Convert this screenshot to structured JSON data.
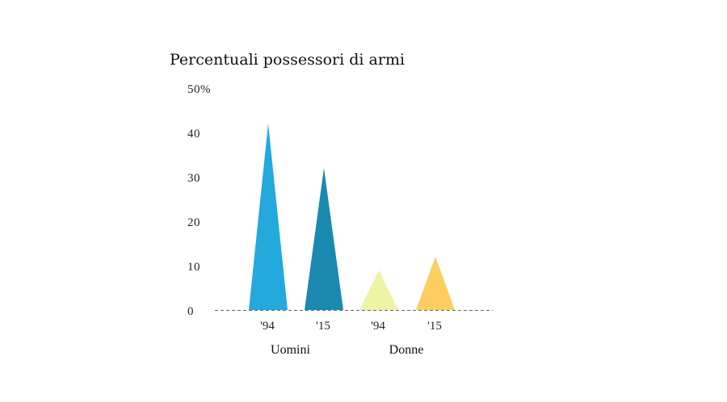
{
  "chart_data": {
    "type": "bar",
    "title": "Percentuali possessori di armi",
    "xlabel": "",
    "ylabel": "",
    "ylim": [
      0,
      50
    ],
    "y_ticks": [
      {
        "value": 50,
        "label": "50%"
      },
      {
        "value": 40,
        "label": "40"
      },
      {
        "value": 30,
        "label": "30"
      },
      {
        "value": 20,
        "label": "20"
      },
      {
        "value": 10,
        "label": "10"
      },
      {
        "value": 0,
        "label": "0"
      }
    ],
    "categories": [
      "'94",
      "'15",
      "'94",
      "'15"
    ],
    "groups": [
      {
        "label": "Uomini",
        "categories": [
          "'94",
          "'15"
        ]
      },
      {
        "label": "Donne",
        "categories": [
          "'94",
          "'15"
        ]
      }
    ],
    "values": [
      42,
      32,
      9,
      12
    ],
    "colors": [
      "#23a9dc",
      "#1a8ab0",
      "#eef4a6",
      "#fdcd5f"
    ],
    "mark_shape": "triangle",
    "baseline_style": "dashed",
    "grid": false
  }
}
